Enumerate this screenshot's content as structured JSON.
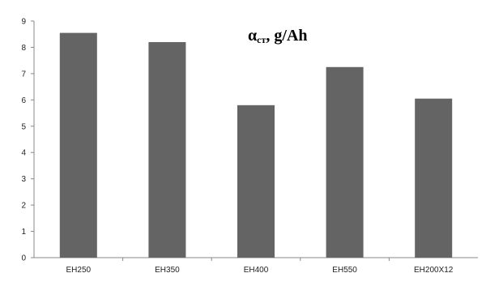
{
  "chart_data": {
    "type": "bar",
    "title_main": "α",
    "title_sub": "ст",
    "title_tail": ", g/Ah",
    "categories": [
      "EH250",
      "EH350",
      "EH400",
      "EH550",
      "EH200X12"
    ],
    "values": [
      8.55,
      8.2,
      5.8,
      7.25,
      6.05
    ],
    "ylim": [
      0,
      9
    ],
    "yticks": [
      "0",
      "1",
      "2",
      "3",
      "4",
      "5",
      "6",
      "7",
      "8",
      "9"
    ],
    "xlabel": "",
    "ylabel": "",
    "grid": false,
    "legend": "none",
    "bar_color": "#646464"
  }
}
